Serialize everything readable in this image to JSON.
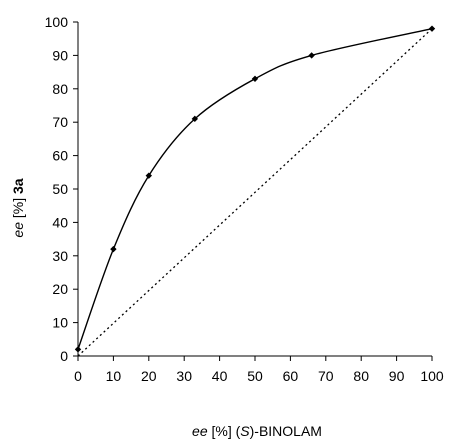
{
  "chart_data": {
    "type": "line",
    "title": "",
    "xlabel": {
      "ee": "ee",
      "pct": " [%] (",
      "S": "S",
      "rest": ")-BINOLAM"
    },
    "ylabel": {
      "ee": "ee",
      "pct": " [%] ",
      "compound": "3a"
    },
    "xlim": [
      0,
      100
    ],
    "ylim": [
      0,
      100
    ],
    "xticks": [
      0,
      10,
      20,
      30,
      40,
      50,
      60,
      70,
      80,
      90,
      100
    ],
    "yticks": [
      0,
      10,
      20,
      30,
      40,
      50,
      60,
      70,
      80,
      90,
      100
    ],
    "grid": false,
    "legend": "none",
    "series": [
      {
        "style": "solid-smoothed-with-diamond-markers",
        "color": "#000000",
        "x": [
          0,
          10,
          20,
          33,
          50,
          66,
          100
        ],
        "y": [
          2,
          32,
          54,
          71,
          83,
          90,
          98
        ]
      },
      {
        "style": "dotted-linear",
        "color": "#000000",
        "x": [
          0,
          100
        ],
        "y": [
          0,
          98
        ]
      }
    ]
  }
}
